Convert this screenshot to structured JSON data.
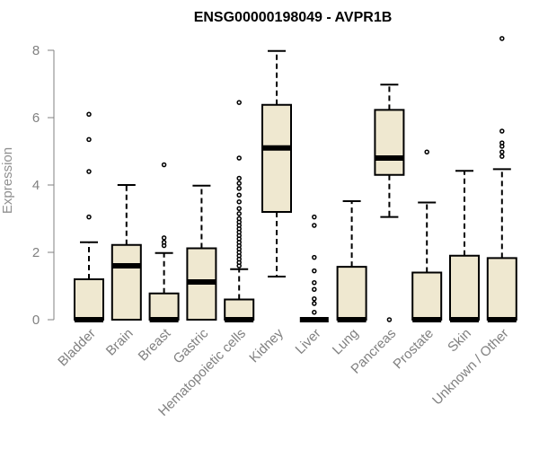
{
  "chart_data": {
    "type": "boxplot",
    "title": "ENSG00000198049 - AVPR1B",
    "xlabel": "",
    "ylabel": "Expression",
    "ylim": [
      0,
      8.3
    ],
    "yticks": [
      0,
      2,
      4,
      6,
      8
    ],
    "grid": false,
    "box_fill": "#efe8d0",
    "categories": [
      "Bladder",
      "Brain",
      "Breast",
      "Gastric",
      "Hematopoietic cells",
      "Kidney",
      "Liver",
      "Lung",
      "Pancreas",
      "Prostate",
      "Skin",
      "Unknown / Other"
    ],
    "boxes": [
      {
        "name": "Bladder",
        "min": 0,
        "q1": 0,
        "median": 0,
        "q3": 1.2,
        "max": 2.3,
        "outliers": [
          3.05,
          4.4,
          5.35,
          6.1
        ]
      },
      {
        "name": "Brain",
        "min": 0,
        "q1": 0,
        "median": 1.6,
        "q3": 2.22,
        "max": 4.0,
        "outliers": []
      },
      {
        "name": "Breast",
        "min": 0,
        "q1": 0,
        "median": 0,
        "q3": 0.78,
        "max": 1.98,
        "outliers": [
          2.2,
          2.3,
          2.43,
          4.6
        ]
      },
      {
        "name": "Gastric",
        "min": 0,
        "q1": 0,
        "median": 1.12,
        "q3": 2.12,
        "max": 3.98,
        "outliers": []
      },
      {
        "name": "Hematopoietic cells",
        "min": 0,
        "q1": 0,
        "median": 0,
        "q3": 0.6,
        "max": 1.5,
        "outliers": [
          1.6,
          1.7,
          1.8,
          1.9,
          2.0,
          2.1,
          2.2,
          2.3,
          2.4,
          2.5,
          2.6,
          2.7,
          2.8,
          2.9,
          3.0,
          3.15,
          3.3,
          3.5,
          3.7,
          3.9,
          4.05,
          4.2,
          4.8,
          6.45
        ]
      },
      {
        "name": "Kidney",
        "min": 1.28,
        "q1": 3.2,
        "median": 5.1,
        "q3": 6.38,
        "max": 7.98,
        "outliers": []
      },
      {
        "name": "Liver",
        "min": 0,
        "q1": 0,
        "median": 0,
        "q3": 0,
        "max": 0,
        "outliers": [
          0.22,
          0.48,
          0.62,
          0.9,
          1.1,
          1.45,
          1.85,
          2.8,
          3.05
        ]
      },
      {
        "name": "Lung",
        "min": 0,
        "q1": 0,
        "median": 0,
        "q3": 1.57,
        "max": 3.52,
        "outliers": []
      },
      {
        "name": "Pancreas",
        "min": 3.05,
        "q1": 4.3,
        "median": 4.8,
        "q3": 6.23,
        "max": 6.98,
        "outliers": [
          0
        ]
      },
      {
        "name": "Prostate",
        "min": 0,
        "q1": 0,
        "median": 0,
        "q3": 1.4,
        "max": 3.48,
        "outliers": [
          4.98
        ]
      },
      {
        "name": "Skin",
        "min": 0,
        "q1": 0,
        "median": 0,
        "q3": 1.9,
        "max": 4.42,
        "outliers": []
      },
      {
        "name": "Unknown / Other",
        "min": 0,
        "q1": 0,
        "median": 0,
        "q3": 1.83,
        "max": 4.47,
        "outliers": [
          4.85,
          4.98,
          5.15,
          5.25,
          5.6,
          8.35
        ]
      }
    ]
  }
}
